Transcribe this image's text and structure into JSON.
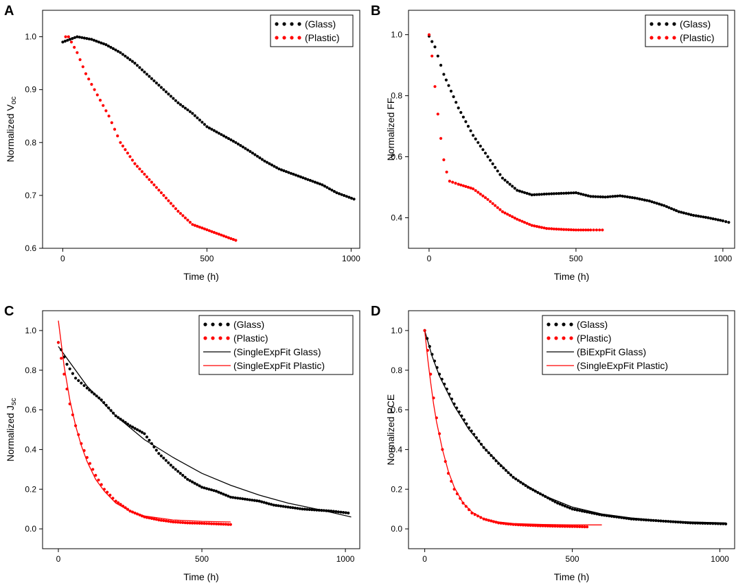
{
  "chart_data": [
    {
      "id": "A",
      "type": "scatter",
      "panel_label": "A",
      "xlabel": "Time (h)",
      "ylabel": {
        "main": "Normalized V",
        "sub": "oc"
      },
      "xlim": [
        -70,
        1030
      ],
      "ylim": [
        0.6,
        1.05
      ],
      "xticks": [
        0,
        500,
        1000
      ],
      "yticks": [
        0.6,
        0.7,
        0.8,
        0.9,
        1.0
      ],
      "xtick_labels": [
        "0",
        "500",
        "1000"
      ],
      "ytick_labels": [
        "0.6",
        "0.7",
        "0.8",
        "0.9",
        "1.0"
      ],
      "legend_position": "top-right",
      "series": [
        {
          "name": "(Glass)",
          "style": "dots",
          "color": "#000000",
          "x": [
            0,
            50,
            100,
            150,
            200,
            250,
            300,
            350,
            400,
            450,
            500,
            550,
            600,
            650,
            700,
            750,
            800,
            850,
            900,
            950,
            1010
          ],
          "y": [
            0.99,
            1.0,
            0.995,
            0.985,
            0.97,
            0.95,
            0.925,
            0.9,
            0.875,
            0.855,
            0.83,
            0.815,
            0.8,
            0.783,
            0.765,
            0.75,
            0.74,
            0.73,
            0.72,
            0.705,
            0.693
          ]
        },
        {
          "name": "(Plastic)",
          "style": "dots",
          "color": "#ff0000",
          "x": [
            10,
            20,
            50,
            80,
            120,
            160,
            200,
            250,
            300,
            350,
            400,
            450,
            500,
            550,
            600
          ],
          "y": [
            1.0,
            1.0,
            0.97,
            0.93,
            0.89,
            0.85,
            0.8,
            0.76,
            0.73,
            0.7,
            0.67,
            0.645,
            0.635,
            0.625,
            0.615
          ]
        }
      ]
    },
    {
      "id": "B",
      "type": "scatter",
      "panel_label": "B",
      "xlabel": "Time (h)",
      "ylabel": {
        "main": "Normalized FF",
        "sub": ""
      },
      "xlim": [
        -70,
        1040
      ],
      "ylim": [
        0.3,
        1.08
      ],
      "xticks": [
        0,
        500,
        1000
      ],
      "yticks": [
        0.4,
        0.6,
        0.8,
        1.0
      ],
      "xtick_labels": [
        "0",
        "500",
        "1000"
      ],
      "ytick_labels": [
        "0.4",
        "0.6",
        "0.8",
        "1.0"
      ],
      "legend_position": "top-right",
      "series": [
        {
          "name": "(Glass)",
          "style": "dots",
          "color": "#000000",
          "x": [
            0,
            20,
            50,
            100,
            150,
            200,
            250,
            300,
            350,
            400,
            450,
            500,
            550,
            600,
            650,
            700,
            750,
            800,
            850,
            900,
            950,
            1000,
            1020
          ],
          "y": [
            0.995,
            0.96,
            0.87,
            0.76,
            0.67,
            0.6,
            0.53,
            0.49,
            0.475,
            0.478,
            0.48,
            0.482,
            0.47,
            0.468,
            0.472,
            0.465,
            0.455,
            0.44,
            0.42,
            0.408,
            0.4,
            0.39,
            0.385
          ]
        },
        {
          "name": "(Plastic)",
          "style": "dots",
          "color": "#ff0000",
          "x": [
            0,
            10,
            20,
            30,
            40,
            50,
            60,
            70,
            100,
            150,
            200,
            250,
            300,
            350,
            400,
            450,
            500,
            550,
            590
          ],
          "y": [
            1.0,
            0.93,
            0.83,
            0.74,
            0.66,
            0.59,
            0.55,
            0.52,
            0.51,
            0.495,
            0.46,
            0.42,
            0.395,
            0.375,
            0.365,
            0.362,
            0.36,
            0.36,
            0.36
          ]
        }
      ]
    },
    {
      "id": "C",
      "type": "scatter",
      "panel_label": "C",
      "xlabel": "Time (h)",
      "ylabel": {
        "main": "Normalized J",
        "sub": "sc"
      },
      "xlim": [
        -55,
        1050
      ],
      "ylim": [
        -0.1,
        1.1
      ],
      "xticks": [
        0,
        500,
        1000
      ],
      "yticks": [
        0.0,
        0.2,
        0.4,
        0.6,
        0.8,
        1.0
      ],
      "xtick_labels": [
        "0",
        "500",
        "1000"
      ],
      "ytick_labels": [
        "0.0",
        "0.2",
        "0.4",
        "0.6",
        "0.8",
        "1.0"
      ],
      "legend_position": "top-right",
      "series": [
        {
          "name": "(Glass)",
          "style": "dots",
          "color": "#000000",
          "x": [
            0,
            30,
            60,
            100,
            150,
            200,
            250,
            300,
            350,
            400,
            450,
            500,
            550,
            600,
            650,
            700,
            750,
            800,
            850,
            900,
            950,
            1010
          ],
          "y": [
            0.94,
            0.83,
            0.76,
            0.71,
            0.65,
            0.57,
            0.52,
            0.48,
            0.38,
            0.31,
            0.25,
            0.21,
            0.19,
            0.16,
            0.15,
            0.14,
            0.12,
            0.11,
            0.1,
            0.095,
            0.09,
            0.08
          ]
        },
        {
          "name": "(Plastic)",
          "style": "dots",
          "color": "#ff0000",
          "x": [
            0,
            20,
            40,
            60,
            80,
            100,
            130,
            160,
            200,
            250,
            300,
            350,
            400,
            450,
            500,
            550,
            600
          ],
          "y": [
            0.94,
            0.78,
            0.63,
            0.52,
            0.43,
            0.36,
            0.27,
            0.2,
            0.14,
            0.09,
            0.06,
            0.045,
            0.035,
            0.03,
            0.028,
            0.025,
            0.022
          ]
        },
        {
          "name": "(SingleExpFit Glass)",
          "style": "line",
          "color": "#000000",
          "x": [
            0,
            100,
            200,
            300,
            400,
            500,
            600,
            700,
            800,
            900,
            1020
          ],
          "y": [
            0.92,
            0.72,
            0.57,
            0.45,
            0.36,
            0.28,
            0.22,
            0.17,
            0.13,
            0.1,
            0.06
          ]
        },
        {
          "name": "(SingleExpFit Plastic)",
          "style": "line",
          "color": "#ff0000",
          "x": [
            0,
            20,
            40,
            60,
            80,
            100,
            130,
            160,
            200,
            250,
            300,
            400,
            500,
            600
          ],
          "y": [
            1.05,
            0.82,
            0.65,
            0.52,
            0.42,
            0.34,
            0.25,
            0.19,
            0.13,
            0.09,
            0.065,
            0.045,
            0.038,
            0.035
          ]
        }
      ]
    },
    {
      "id": "D",
      "type": "scatter",
      "panel_label": "D",
      "xlabel": "Time (h)",
      "ylabel": {
        "main": "Normalized PCE",
        "sub": ""
      },
      "xlim": [
        -55,
        1050
      ],
      "ylim": [
        -0.1,
        1.1
      ],
      "xticks": [
        0,
        500,
        1000
      ],
      "yticks": [
        0.0,
        0.2,
        0.4,
        0.6,
        0.8,
        1.0
      ],
      "xtick_labels": [
        "0",
        "500",
        "1000"
      ],
      "ytick_labels": [
        "0.0",
        "0.2",
        "0.4",
        "0.6",
        "0.8",
        "1.0"
      ],
      "legend_position": "top-right",
      "series": [
        {
          "name": "(Glass)",
          "style": "dots",
          "color": "#000000",
          "x": [
            0,
            25,
            50,
            100,
            150,
            200,
            250,
            300,
            350,
            400,
            450,
            500,
            550,
            600,
            650,
            700,
            750,
            800,
            850,
            900,
            950,
            1020
          ],
          "y": [
            1.0,
            0.88,
            0.78,
            0.63,
            0.51,
            0.41,
            0.33,
            0.26,
            0.21,
            0.17,
            0.13,
            0.1,
            0.085,
            0.07,
            0.06,
            0.05,
            0.045,
            0.04,
            0.035,
            0.03,
            0.028,
            0.025
          ]
        },
        {
          "name": "(Plastic)",
          "style": "dots",
          "color": "#ff0000",
          "x": [
            0,
            10,
            20,
            30,
            40,
            60,
            80,
            100,
            130,
            160,
            200,
            250,
            300,
            350,
            400,
            450,
            500,
            550
          ],
          "y": [
            1.0,
            0.9,
            0.78,
            0.66,
            0.56,
            0.4,
            0.28,
            0.2,
            0.13,
            0.08,
            0.05,
            0.03,
            0.022,
            0.018,
            0.015,
            0.013,
            0.012,
            0.01
          ]
        },
        {
          "name": "(BiExpFit Glass)",
          "style": "line",
          "color": "#000000",
          "x": [
            0,
            25,
            50,
            100,
            150,
            200,
            300,
            400,
            500,
            600,
            700,
            800,
            900,
            1020
          ],
          "y": [
            1.0,
            0.87,
            0.77,
            0.62,
            0.5,
            0.41,
            0.26,
            0.17,
            0.11,
            0.075,
            0.055,
            0.042,
            0.035,
            0.03
          ]
        },
        {
          "name": "(SingleExpFit Plastic)",
          "style": "line",
          "color": "#ff0000",
          "x": [
            0,
            10,
            20,
            30,
            40,
            60,
            80,
            100,
            130,
            160,
            200,
            250,
            300,
            400,
            500,
            600
          ],
          "y": [
            1.0,
            0.86,
            0.74,
            0.63,
            0.54,
            0.4,
            0.29,
            0.21,
            0.13,
            0.085,
            0.05,
            0.035,
            0.027,
            0.022,
            0.02,
            0.02
          ]
        }
      ]
    }
  ]
}
